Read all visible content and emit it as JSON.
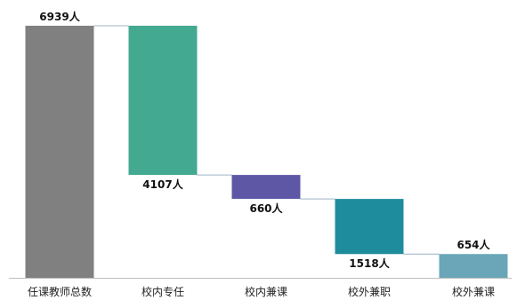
{
  "chart_data": {
    "type": "waterfall",
    "title": "",
    "xlabel": "",
    "ylabel": "",
    "ylim": [
      0,
      7000
    ],
    "grid": false,
    "legend": "none",
    "categories": [
      "任课教师总数",
      "校内专任",
      "校内兼课",
      "校外兼职",
      "校外兼课"
    ],
    "values": [
      6939,
      4107,
      660,
      1518,
      654
    ],
    "data_labels": [
      "6939人",
      "4107人",
      "660人",
      "1518人",
      "654人"
    ],
    "label_position": [
      "top",
      "bottom",
      "bottom",
      "bottom",
      "top"
    ],
    "bar_colors": [
      "#808080",
      "#43A990",
      "#5E57A6",
      "#1F8C9D",
      "#6BA6B8"
    ],
    "connector_color": "#9DB3C6",
    "axis_color": "#BFBFBF"
  }
}
